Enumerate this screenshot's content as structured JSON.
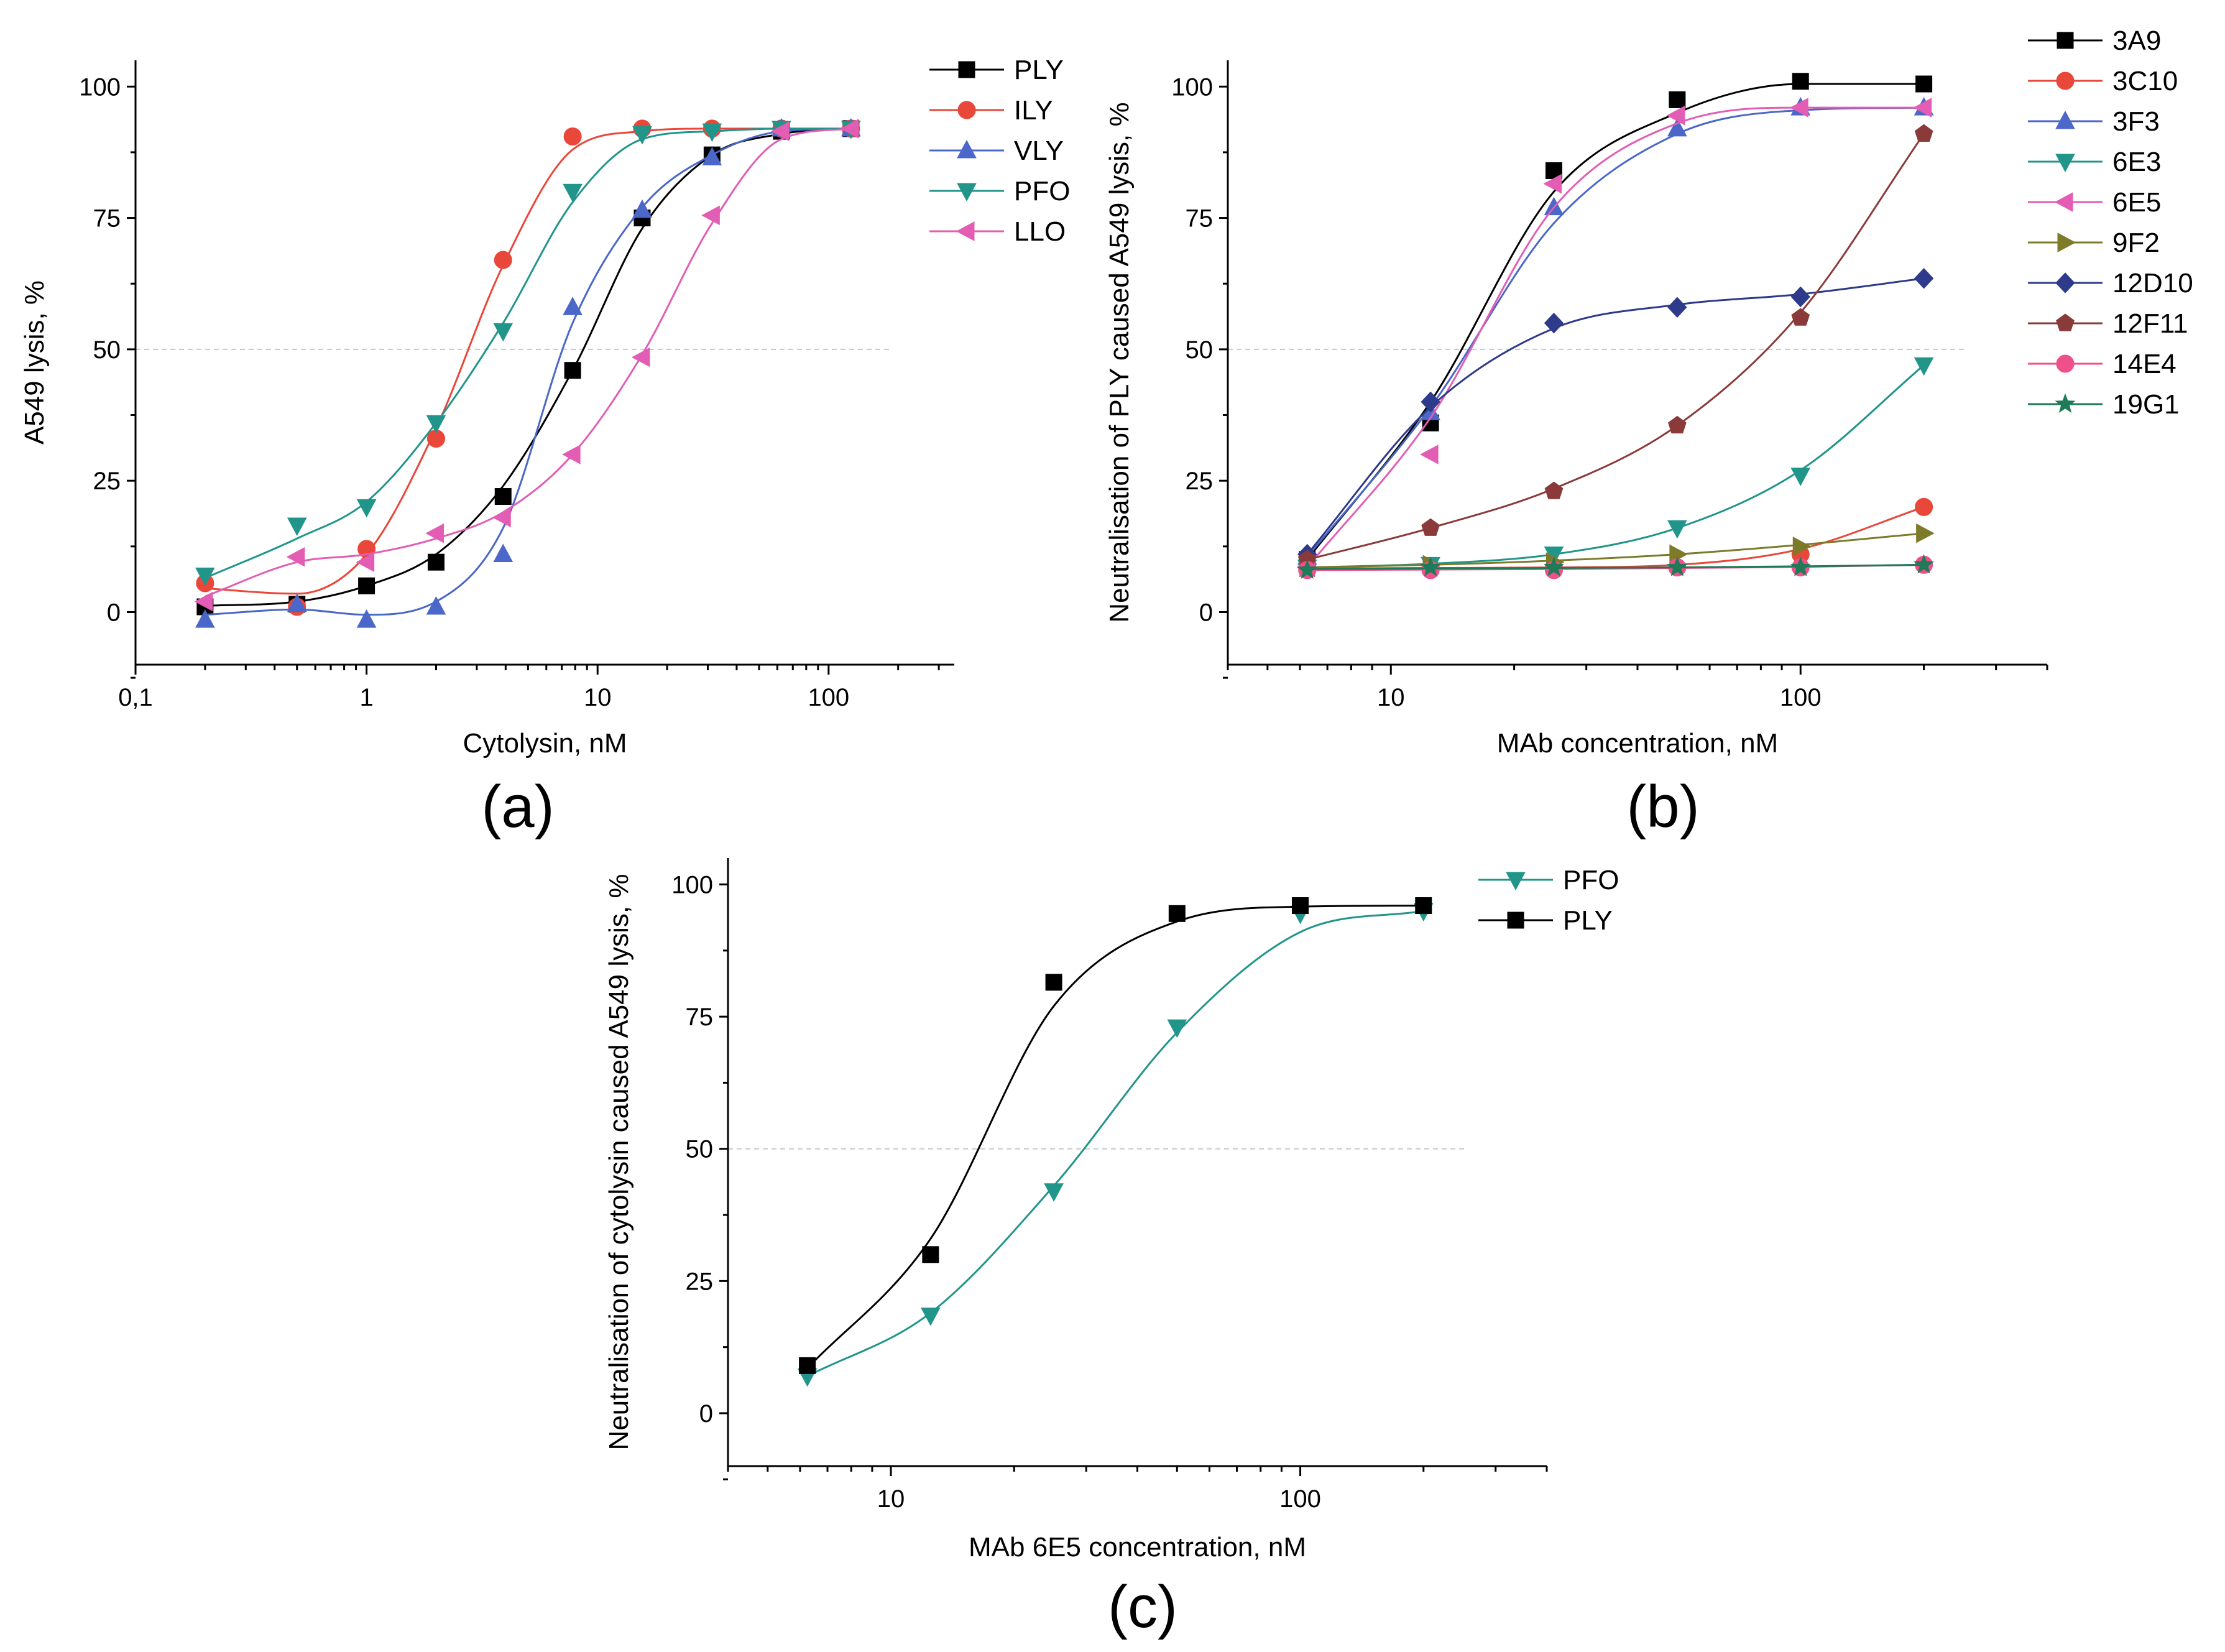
{
  "chart_data": [
    {
      "panel_label": "(a)",
      "type": "line",
      "xscale": "log",
      "xlabel": "Cytolysin, nM",
      "ylabel": "A549 lysis, %",
      "xlim": [
        0.1,
        350
      ],
      "ylim": [
        -10,
        105
      ],
      "xticks": [
        0.1,
        1,
        10,
        100
      ],
      "xtick_labels": [
        "0,1",
        "1",
        "10",
        "100"
      ],
      "yticks": [
        0,
        25,
        50,
        75,
        100
      ],
      "ytick_labels": [
        "0",
        "25",
        "50",
        "75",
        "100"
      ],
      "reference_line": 50,
      "legend_position": "top-right",
      "series": [
        {
          "name": "PLY",
          "color": "#000000",
          "marker": "square",
          "x": [
            0.2,
            0.5,
            1,
            2,
            3.9,
            7.8,
            15.6,
            31.3,
            62.5,
            125
          ],
          "y": [
            1,
            1.5,
            5,
            9.5,
            22,
            46,
            75,
            87,
            91.5,
            92
          ],
          "curve_y": [
            1.2,
            2,
            5,
            11,
            24,
            46,
            73,
            87,
            91,
            92
          ]
        },
        {
          "name": "ILY",
          "color": "#e8473a",
          "marker": "circle",
          "x": [
            0.2,
            0.5,
            1,
            2,
            3.9,
            7.8,
            15.6,
            31.3,
            62.5,
            125
          ],
          "y": [
            5.5,
            1,
            12,
            33,
            67,
            90.5,
            92,
            92,
            92,
            92
          ],
          "curve_y": [
            4.5,
            3.5,
            11,
            35,
            66,
            88,
            91.5,
            92,
            92,
            92
          ]
        },
        {
          "name": "VLY",
          "color": "#4a67c9",
          "marker": "triangle-up",
          "x": [
            0.2,
            0.5,
            1,
            2,
            3.9,
            7.8,
            15.6,
            31.3,
            62.5,
            125
          ],
          "y": [
            -1.5,
            1.5,
            -1.5,
            1,
            11,
            58,
            76.5,
            86.5,
            92,
            92
          ],
          "curve_y": [
            -0.5,
            0.5,
            -0.5,
            2,
            16,
            55,
            77,
            87,
            91.5,
            92
          ]
        },
        {
          "name": "PFO",
          "color": "#21958a",
          "marker": "triangle-down",
          "x": [
            0.2,
            0.5,
            1,
            2,
            3.9,
            7.8,
            15.6,
            31.3,
            62.5,
            125
          ],
          "y": [
            7,
            16.5,
            20,
            36,
            53.5,
            80,
            91,
            91.5,
            92,
            92
          ],
          "curve_y": [
            6.5,
            14,
            21,
            36,
            55,
            78,
            90,
            91.5,
            92,
            92
          ]
        },
        {
          "name": "LLO",
          "color": "#e25db3",
          "marker": "triangle-left",
          "x": [
            0.2,
            0.5,
            1,
            2,
            3.9,
            7.8,
            15.6,
            31.3,
            62.5,
            125
          ],
          "y": [
            2,
            10.5,
            9.5,
            15,
            18,
            30,
            48.5,
            75.5,
            91.5,
            92
          ],
          "curve_y": [
            3,
            9.5,
            11,
            14,
            19,
            30,
            49,
            74,
            90,
            92
          ]
        }
      ]
    },
    {
      "panel_label": "(b)",
      "type": "line",
      "xscale": "log",
      "xlabel": "MAb concentration, nM",
      "ylabel": "Neutralisation of PLY caused A549 lysis, %",
      "xlim": [
        4,
        400
      ],
      "ylim": [
        -10,
        105
      ],
      "xticks": [
        10,
        100
      ],
      "xtick_labels": [
        "10",
        "100"
      ],
      "yticks": [
        0,
        25,
        50,
        75,
        100
      ],
      "ytick_labels": [
        "0",
        "25",
        "50",
        "75",
        "100"
      ],
      "reference_line": 50,
      "legend_position": "top-right",
      "series": [
        {
          "name": "3A9",
          "color": "#000000",
          "marker": "square",
          "x": [
            6.25,
            12.5,
            25,
            50,
            100,
            200
          ],
          "y": [
            10,
            36,
            84,
            97.5,
            101,
            100.5
          ],
          "curve_y": [
            10,
            40,
            80,
            95,
            100.5,
            100.5
          ]
        },
        {
          "name": "3C10",
          "color": "#e8473a",
          "marker": "circle",
          "x": [
            6.25,
            12.5,
            25,
            50,
            100,
            200
          ],
          "y": [
            8.5,
            8.5,
            8.5,
            8.5,
            11,
            20
          ],
          "curve_y": [
            8.3,
            8.4,
            8.5,
            9,
            12,
            20
          ]
        },
        {
          "name": "3F3",
          "color": "#4a67c9",
          "marker": "triangle-up",
          "x": [
            6.25,
            12.5,
            25,
            50,
            100,
            200
          ],
          "y": [
            10.5,
            38,
            77,
            92,
            96,
            96
          ],
          "curve_y": [
            10.5,
            39,
            74,
            91,
            95.5,
            96
          ]
        },
        {
          "name": "6E3",
          "color": "#21958a",
          "marker": "triangle-down",
          "x": [
            6.25,
            12.5,
            25,
            50,
            100,
            200
          ],
          "y": [
            8.5,
            9,
            11,
            16,
            26,
            47
          ],
          "curve_y": [
            8.5,
            9.2,
            11,
            16,
            27,
            47
          ]
        },
        {
          "name": "6E5",
          "color": "#e25db3",
          "marker": "triangle-left",
          "x": [
            6.25,
            12.5,
            25,
            50,
            100,
            200
          ],
          "y": [
            8.5,
            30,
            81.5,
            94.5,
            96,
            96
          ],
          "curve_y": [
            8.5,
            37,
            77,
            93,
            96,
            96
          ]
        },
        {
          "name": "9F2",
          "color": "#7d7a2a",
          "marker": "triangle-right",
          "x": [
            6.25,
            12.5,
            25,
            50,
            100,
            200
          ],
          "y": [
            8.5,
            9,
            9.5,
            11,
            12.5,
            15
          ],
          "curve_y": [
            8.5,
            9,
            9.8,
            11,
            12.8,
            15
          ]
        },
        {
          "name": "12D10",
          "color": "#2e3a8a",
          "marker": "diamond",
          "x": [
            6.25,
            12.5,
            25,
            50,
            100,
            200
          ],
          "y": [
            11,
            40,
            55,
            58,
            60,
            63.5
          ],
          "curve_y": [
            11,
            39,
            54,
            58.5,
            60.5,
            63.5
          ]
        },
        {
          "name": "12F11",
          "color": "#8b3a3a",
          "marker": "pentagon",
          "x": [
            6.25,
            12.5,
            25,
            50,
            100,
            200
          ],
          "y": [
            10,
            16,
            23,
            35.5,
            56,
            91
          ],
          "curve_y": [
            10,
            16,
            23.5,
            35.5,
            57,
            91
          ]
        },
        {
          "name": "14E4",
          "color": "#ef4f8a",
          "marker": "circle",
          "x": [
            6.25,
            12.5,
            25,
            50,
            100,
            200
          ],
          "y": [
            8,
            8,
            8,
            8.5,
            8.5,
            9
          ],
          "curve_y": [
            8,
            8.1,
            8.2,
            8.4,
            8.6,
            9
          ]
        },
        {
          "name": "19G1",
          "color": "#1f7a58",
          "marker": "star",
          "x": [
            6.25,
            12.5,
            25,
            50,
            100,
            200
          ],
          "y": [
            8,
            8.5,
            8.5,
            8.5,
            8.5,
            9
          ],
          "curve_y": [
            8.2,
            8.3,
            8.4,
            8.5,
            8.7,
            9
          ]
        }
      ]
    },
    {
      "panel_label": "(c)",
      "type": "line",
      "xscale": "log",
      "xlabel": "MAb 6E5 concentration, nM",
      "ylabel": "Neutralisation of cytolysin caused A549 lysis, %",
      "xlim": [
        4,
        400
      ],
      "ylim": [
        -10,
        105
      ],
      "xticks": [
        10,
        100
      ],
      "xtick_labels": [
        "10",
        "100"
      ],
      "yticks": [
        0,
        25,
        50,
        75,
        100
      ],
      "ytick_labels": [
        "0",
        "25",
        "50",
        "75",
        "100"
      ],
      "reference_line": 50,
      "legend_position": "top-right",
      "series": [
        {
          "name": "PFO",
          "color": "#21958a",
          "marker": "triangle-down",
          "x": [
            6.25,
            12.5,
            25,
            50,
            100,
            200
          ],
          "y": [
            7,
            18.5,
            42,
            73,
            94.5,
            95
          ],
          "curve_y": [
            7,
            19,
            43,
            72,
            91,
            95
          ]
        },
        {
          "name": "PLY",
          "color": "#000000",
          "marker": "square",
          "x": [
            6.25,
            12.5,
            25,
            50,
            100,
            200
          ],
          "y": [
            9,
            30,
            81.5,
            94.5,
            96,
            96
          ],
          "curve_y": [
            8.5,
            33,
            77,
            93,
            95.8,
            96
          ]
        }
      ]
    }
  ]
}
